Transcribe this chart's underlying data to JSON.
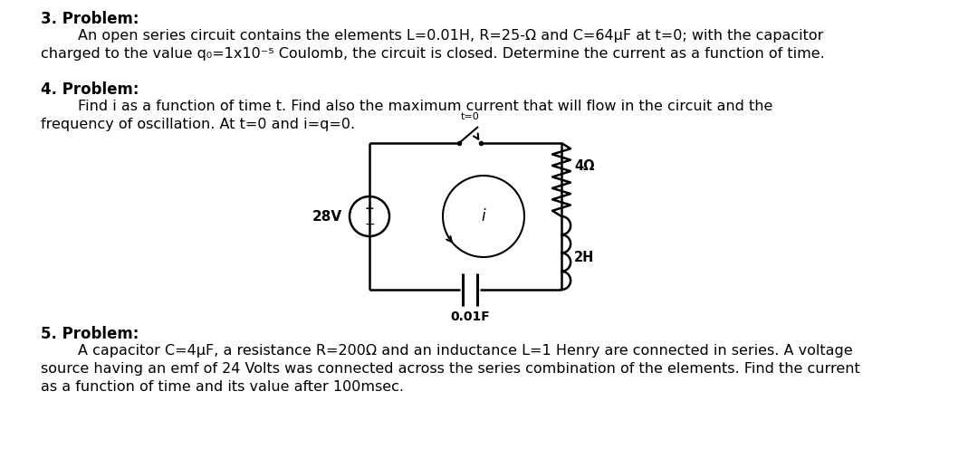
{
  "bg_color": "#ffffff",
  "text_color": "#000000",
  "problem3_header": "3. Problem:",
  "problem3_line1": "        An open series circuit contains the elements L=0.01H, R=25-Ω and C=64μF at t=0; with the capacitor",
  "problem3_line2": "charged to the value q₀=1x10⁻⁵ Coulomb, the circuit is closed. Determine the current as a function of time.",
  "problem4_header": "4. Problem:",
  "problem4_line1": "        Find i as a function of time t. Find also the maximum current that will flow in the circuit and the",
  "problem4_line2": "frequency of oscillation. At t=0 and i=q=0.",
  "problem5_header": "5. Problem:",
  "problem5_line1": "        A capacitor C=4μF, a resistance R=200Ω and an inductance L=1 Henry are connected in series. A voltage",
  "problem5_line2": "source having an emf of 24 Volts was connected across the series combination of the elements. Find the current",
  "problem5_line3": "as a function of time and its value after 100msec.",
  "font_size_body": 11.5,
  "font_size_header": 12.0,
  "font_size_small": 9.0
}
